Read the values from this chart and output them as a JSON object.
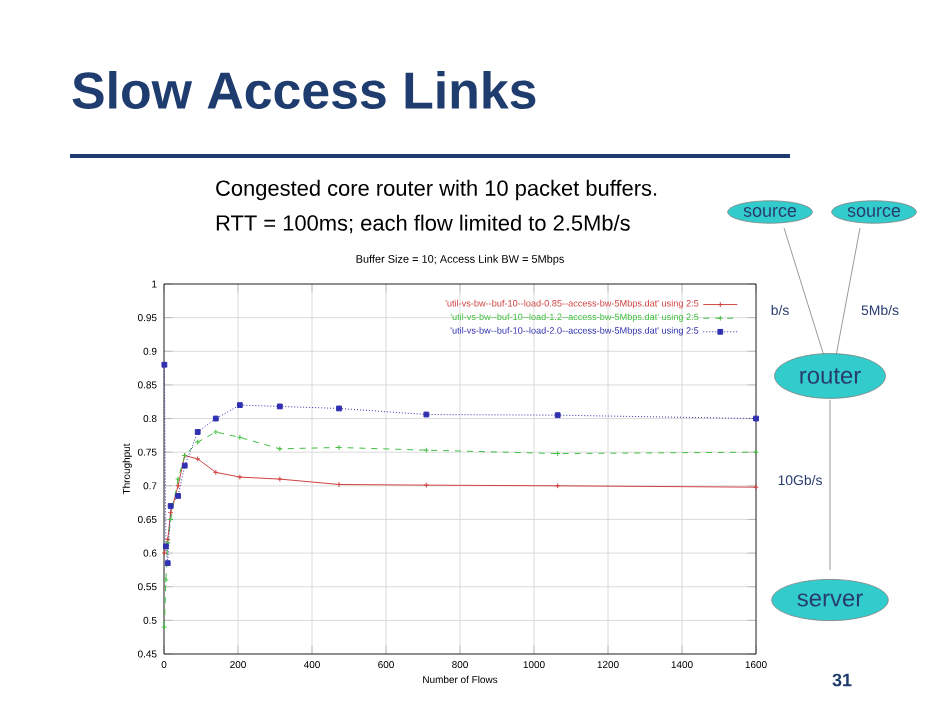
{
  "chart_data": {
    "type": "line",
    "title": "Slow Access Links",
    "subtitle": "Buffer Size = 10; Access Link BW = 5Mbps",
    "xlabel": "Number of Flows",
    "ylabel": "Throughput",
    "x": [
      1,
      5,
      10,
      18,
      38,
      56,
      91,
      140,
      205,
      313,
      473,
      709,
      1064,
      1600
    ],
    "series": [
      {
        "name": "'util-vs-bw--buf-10--load-0.85--access-bw-5Mbps.dat' using 2:5",
        "color": "#d04040",
        "marker": "cross",
        "line_style": "solid",
        "values": [
          0.6,
          0.61,
          0.62,
          0.66,
          0.7,
          0.745,
          0.74,
          0.72,
          0.713,
          0.71,
          0.702,
          0.701,
          0.7,
          0.698
        ]
      },
      {
        "name": "'util-vs-bw--buf-10--load-1.2--access-bw-5Mbps.dat' using 2:5",
        "color": "#40c040",
        "marker": "cross",
        "line_style": "dashed",
        "values": [
          0.49,
          0.56,
          0.615,
          0.65,
          0.71,
          0.745,
          0.765,
          0.78,
          0.772,
          0.755,
          0.757,
          0.753,
          0.748,
          0.75
        ]
      },
      {
        "name": "'util-vs-bw--buf-10--load-2.0--access-bw-5Mbps.dat' using 2:5",
        "color": "#3030b0",
        "marker": "square",
        "line_style": "dotted",
        "values": [
          0.88,
          0.61,
          0.585,
          0.67,
          0.685,
          0.73,
          0.78,
          0.8,
          0.82,
          0.818,
          0.815,
          0.806,
          0.805,
          0.8
        ]
      }
    ],
    "xlim": [
      0,
      1600
    ],
    "ylim": [
      0.45,
      1
    ],
    "xticks": [
      0,
      200,
      400,
      600,
      800,
      1000,
      1200,
      1400,
      1600
    ],
    "yticks": [
      0.45,
      0.5,
      0.55,
      0.6,
      0.65,
      0.7,
      0.75,
      0.8,
      0.85,
      0.9,
      0.95,
      1
    ],
    "grid": true,
    "legend": "top right",
    "annotations": [
      "Congested core router with 10 packet buffers.",
      "RTT = 100ms; each flow limited to 2.5Mb/s",
      "source",
      "source",
      "b/s",
      "5Mb/s",
      "router",
      "10Gb/s",
      "server",
      "31"
    ]
  }
}
